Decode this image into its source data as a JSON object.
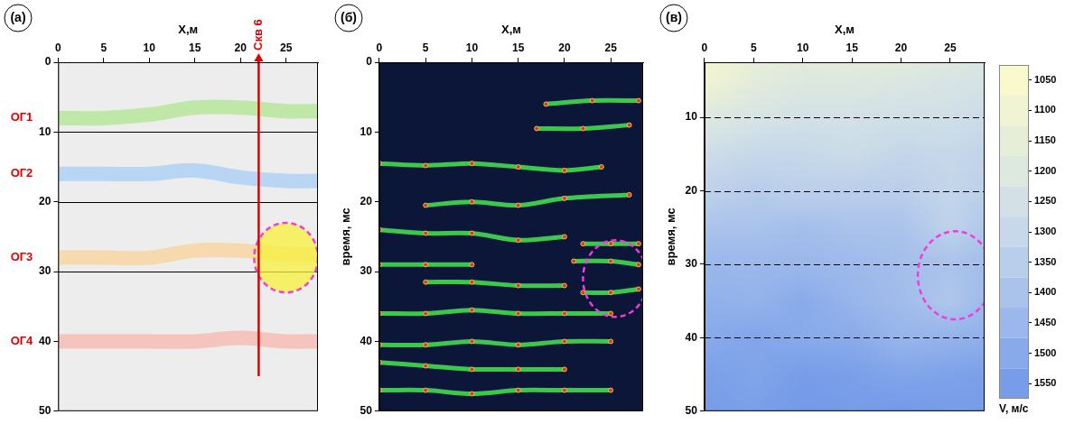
{
  "chart_data": [
    {
      "type": "seismic",
      "panel": "(а)",
      "x_label": "X,м",
      "xlim": [
        0,
        28.5
      ],
      "xticks": [
        0,
        5,
        10,
        15,
        20,
        25
      ],
      "ylim": [
        0,
        50
      ],
      "yticks": [
        0,
        10,
        20,
        30,
        40,
        50
      ],
      "grid": true,
      "horizons": [
        {
          "name": "ОГ1",
          "color": "#bfe8a8",
          "x": [
            0,
            5,
            10,
            15,
            20,
            25,
            28.5
          ],
          "values": [
            8,
            8,
            7.5,
            6.5,
            6.5,
            7,
            7
          ]
        },
        {
          "name": "ОГ2",
          "color": "#b8d6f4",
          "x": [
            0,
            5,
            10,
            15,
            20,
            25,
            28.5
          ],
          "values": [
            16,
            16,
            16,
            15.5,
            16.5,
            17,
            17
          ]
        },
        {
          "name": "ОГ3",
          "color": "#f6d9ad",
          "x": [
            0,
            5,
            10,
            15,
            20,
            25,
            28.5
          ],
          "values": [
            28,
            28,
            28,
            27,
            27,
            27.5,
            27.5
          ]
        },
        {
          "name": "ОГ4",
          "color": "#f4c4bd",
          "x": [
            0,
            5,
            10,
            15,
            20,
            25,
            28.5
          ],
          "values": [
            40,
            40,
            40,
            40,
            39.5,
            40,
            40
          ]
        }
      ],
      "well": {
        "name": "Скв 6",
        "x": 22,
        "bottom": 45
      },
      "anomaly": {
        "x": 25,
        "y": 28,
        "x_radius": 3.5,
        "y_radius": 5
      }
    },
    {
      "type": "attribute",
      "panel": "(б)",
      "x_label": "X,м",
      "y_label": "время, мс",
      "xlim": [
        0,
        28.5
      ],
      "xticks": [
        0,
        5,
        10,
        15,
        20,
        25
      ],
      "ylim": [
        0,
        50
      ],
      "yticks": [
        0,
        10,
        20,
        30,
        40,
        50
      ],
      "grid": false,
      "events": [
        {
          "x": [
            18,
            23,
            28
          ],
          "values": [
            6,
            5.5,
            5.5
          ]
        },
        {
          "x": [
            17,
            22,
            27
          ],
          "values": [
            9.5,
            9.5,
            9
          ]
        },
        {
          "x": [
            0,
            5,
            10,
            15,
            20,
            24
          ],
          "values": [
            14.5,
            14.8,
            14.5,
            15,
            15.5,
            15
          ]
        },
        {
          "x": [
            5,
            10,
            15,
            20,
            27
          ],
          "values": [
            20.5,
            20,
            20.5,
            19.5,
            19
          ]
        },
        {
          "x": [
            0,
            5,
            10,
            15,
            20
          ],
          "values": [
            24,
            24.5,
            24.5,
            25.5,
            25
          ]
        },
        {
          "x": [
            22,
            25,
            28
          ],
          "values": [
            26,
            26,
            26
          ]
        },
        {
          "x": [
            21,
            25,
            28
          ],
          "values": [
            28.5,
            28.5,
            29
          ]
        },
        {
          "x": [
            0,
            5,
            10
          ],
          "values": [
            29,
            29,
            29
          ]
        },
        {
          "x": [
            5,
            10,
            15,
            20
          ],
          "values": [
            31.5,
            31.5,
            32,
            32
          ]
        },
        {
          "x": [
            22,
            25,
            28
          ],
          "values": [
            33,
            33,
            32.5
          ]
        },
        {
          "x": [
            0,
            5,
            10,
            15,
            20,
            25
          ],
          "values": [
            36,
            36,
            35.5,
            36,
            36,
            36
          ]
        },
        {
          "x": [
            0,
            5,
            10,
            15,
            20,
            25
          ],
          "values": [
            40.5,
            40.5,
            40,
            40.5,
            40,
            40
          ]
        },
        {
          "x": [
            0,
            5,
            10,
            15,
            20
          ],
          "values": [
            43,
            43.5,
            44,
            44,
            44
          ]
        },
        {
          "x": [
            0,
            5,
            10,
            15,
            20,
            25
          ],
          "values": [
            47,
            47,
            47.5,
            47,
            47,
            47
          ]
        }
      ],
      "anomaly": {
        "x": 25.5,
        "y": 31,
        "x_radius": 3.5,
        "y_radius": 5.5
      }
    },
    {
      "type": "velocity",
      "panel": "(в)",
      "x_label": "X,м",
      "y_label": "время, мс",
      "xlim": [
        0,
        28.5
      ],
      "xticks": [
        0,
        5,
        10,
        15,
        20,
        25
      ],
      "ylim": [
        2.5,
        50
      ],
      "yticks": [
        10,
        20,
        30,
        40,
        50
      ],
      "grid": true,
      "x": [
        0,
        5,
        10,
        15,
        20,
        25,
        28.5
      ],
      "t": [
        2.5,
        5,
        10,
        15,
        20,
        25,
        30,
        35,
        40,
        45,
        50
      ],
      "v": [
        [
          1080,
          1150,
          1180,
          1170,
          1180,
          1200,
          1220
        ],
        [
          1100,
          1170,
          1200,
          1200,
          1210,
          1230,
          1240
        ],
        [
          1200,
          1230,
          1250,
          1250,
          1260,
          1260,
          1280
        ],
        [
          1270,
          1300,
          1300,
          1280,
          1310,
          1300,
          1320
        ],
        [
          1330,
          1360,
          1340,
          1350,
          1350,
          1310,
          1340
        ],
        [
          1400,
          1400,
          1420,
          1400,
          1400,
          1330,
          1380
        ],
        [
          1450,
          1450,
          1450,
          1440,
          1420,
          1400,
          1420
        ],
        [
          1480,
          1470,
          1500,
          1460,
          1430,
          1380,
          1440
        ],
        [
          1500,
          1520,
          1500,
          1500,
          1460,
          1470,
          1480
        ],
        [
          1540,
          1520,
          1550,
          1540,
          1520,
          1530,
          1540
        ],
        [
          1550,
          1540,
          1560,
          1550,
          1560,
          1550,
          1550
        ]
      ],
      "anomaly": {
        "x": 25.5,
        "y": 31.5,
        "x_radius": 3.8,
        "y_radius": 6
      },
      "colorbar": {
        "label": "V, м/с",
        "lim": [
          1025,
          1575
        ],
        "ticks": [
          1050,
          1100,
          1150,
          1200,
          1250,
          1300,
          1350,
          1400,
          1450,
          1500,
          1550
        ]
      }
    }
  ]
}
